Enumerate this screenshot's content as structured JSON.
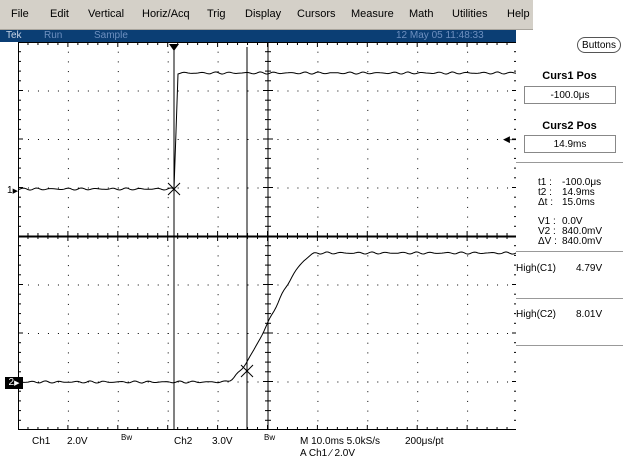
{
  "menu": {
    "items": [
      "File",
      "Edit",
      "Vertical",
      "Horiz/Acq",
      "Trig",
      "Display",
      "Cursors",
      "Measure",
      "Math",
      "Utilities",
      "Help"
    ]
  },
  "status": {
    "brand": "Tek",
    "run_state": "Run",
    "acq_mode": "Sample",
    "datetime": "12 May 05 11:48:33"
  },
  "panel": {
    "buttons_label": "Buttons",
    "curs1_title": "Curs1 Pos",
    "curs1_value": "-100.0μs",
    "curs2_title": "Curs2 Pos",
    "curs2_value": "14.9ms",
    "readouts": {
      "t1_label": "t1 :",
      "t1_value": "-100.0μs",
      "t2_label": "t2 :",
      "t2_value": "14.9ms",
      "dt_label": "Δt :",
      "dt_value": "15.0ms",
      "v1_label": "V1 :",
      "v1_value": "0.0V",
      "v2_label": "V2 :",
      "v2_value": "840.0mV",
      "dv_label": "ΔV :",
      "dv_value": "840.0mV"
    },
    "meas1_label": "High(C1)",
    "meas1_value": "4.79V",
    "meas2_label": "High(C2)",
    "meas2_value": "8.01V"
  },
  "markers": {
    "ch1": "1",
    "ch2": "2"
  },
  "bottom": {
    "ch1_name": "Ch1",
    "ch1_scale": "2.0V",
    "ch1_bw": "Bw",
    "ch2_name": "Ch2",
    "ch2_scale": "3.0V",
    "ch2_bw": "Bw",
    "timebase": "M 10.0ms 5.0kS/s",
    "record": "200μs/pt",
    "trigger": "A  Ch1  ∕  2.0V"
  },
  "colors": {
    "menubar": "#d4d0c8",
    "statusbar": "#0b3e74",
    "grid": "#000000",
    "trace": "#000000"
  }
}
